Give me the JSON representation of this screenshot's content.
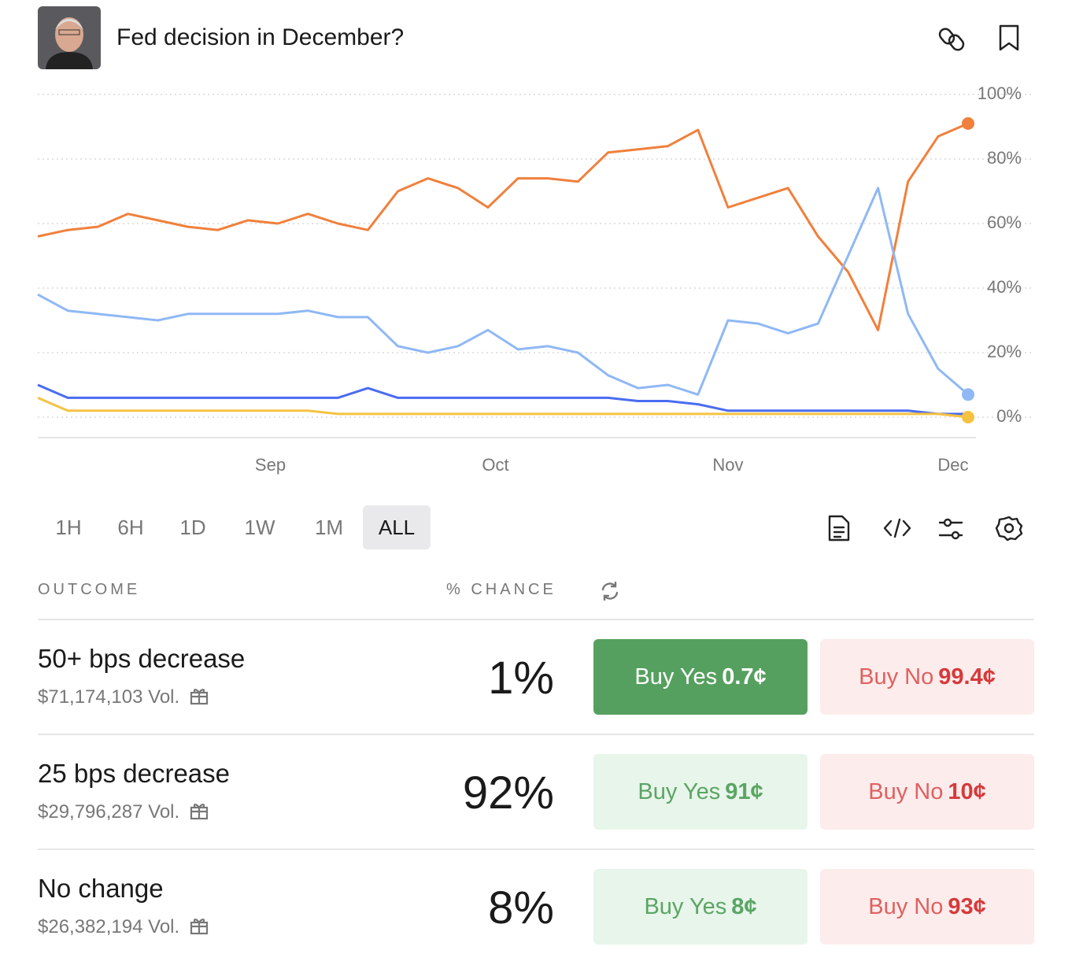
{
  "header": {
    "title": "Fed decision in December?"
  },
  "chart_data": {
    "type": "line",
    "x": [
      0,
      4,
      8,
      12,
      16,
      20,
      24,
      28,
      32,
      36,
      40,
      44,
      48,
      52,
      56,
      60,
      64,
      68,
      72,
      76,
      80,
      84,
      88,
      92,
      96,
      100,
      104,
      108,
      112,
      116,
      120,
      124
    ],
    "series": [
      {
        "color": "#f0803c",
        "end_dot": true,
        "values": [
          56,
          58,
          59,
          63,
          61,
          59,
          58,
          61,
          60,
          63,
          60,
          58,
          70,
          74,
          71,
          65,
          74,
          74,
          73,
          82,
          83,
          84,
          89,
          65,
          68,
          71,
          56,
          45,
          27,
          73,
          87,
          91
        ]
      },
      {
        "color": "#8fb8f5",
        "end_dot": true,
        "values": [
          38,
          33,
          32,
          31,
          30,
          32,
          32,
          32,
          32,
          33,
          31,
          31,
          22,
          20,
          22,
          27,
          21,
          22,
          20,
          13,
          9,
          10,
          7,
          30,
          29,
          26,
          29,
          50,
          71,
          32,
          15,
          7
        ]
      },
      {
        "color": "#4a6cf0",
        "end_dot": false,
        "values": [
          10,
          6,
          6,
          6,
          6,
          6,
          6,
          6,
          6,
          6,
          6,
          9,
          6,
          6,
          6,
          6,
          6,
          6,
          6,
          6,
          5,
          5,
          4,
          2,
          2,
          2,
          2,
          2,
          2,
          2,
          1,
          1
        ]
      },
      {
        "color": "#f5c242",
        "end_dot": true,
        "values": [
          6,
          2,
          2,
          2,
          2,
          2,
          2,
          2,
          2,
          2,
          1,
          1,
          1,
          1,
          1,
          1,
          1,
          1,
          1,
          1,
          1,
          1,
          1,
          1,
          1,
          1,
          1,
          1,
          1,
          1,
          1,
          0
        ]
      }
    ],
    "xlim": [
      0,
      124
    ],
    "xticks": [
      {
        "value": 31,
        "label": "Sep"
      },
      {
        "value": 61,
        "label": "Oct"
      },
      {
        "value": 92,
        "label": "Nov"
      },
      {
        "value": 122,
        "label": "Dec"
      }
    ],
    "ylim": [
      0,
      100
    ],
    "yticks": [
      {
        "value": 0,
        "label": "0%"
      },
      {
        "value": 20,
        "label": "20%"
      },
      {
        "value": 40,
        "label": "40%"
      },
      {
        "value": 60,
        "label": "60%"
      },
      {
        "value": 80,
        "label": "80%"
      },
      {
        "value": 100,
        "label": "100%"
      }
    ],
    "grid": true
  },
  "ranges": {
    "options": [
      "1H",
      "6H",
      "1D",
      "1W",
      "1M",
      "ALL"
    ],
    "selected": 5
  },
  "table": {
    "headers": [
      "OUTCOME",
      "% CHANCE"
    ],
    "rows": [
      {
        "name": "50+ bps decrease",
        "volume": "$71,174,103 Vol.",
        "chance": "1%",
        "yes_label": "Buy Yes",
        "yes_price": "0.7¢",
        "no_label": "Buy No",
        "no_price": "99.4¢",
        "highlight": true
      },
      {
        "name": "25 bps decrease",
        "volume": "$29,796,287 Vol.",
        "chance": "92%",
        "yes_label": "Buy Yes",
        "yes_price": "91¢",
        "no_label": "Buy No",
        "no_price": "10¢",
        "highlight": false
      },
      {
        "name": "No change",
        "volume": "$26,382,194 Vol.",
        "chance": "8%",
        "yes_label": "Buy Yes",
        "yes_price": "8¢",
        "no_label": "Buy No",
        "no_price": "93¢",
        "highlight": false
      }
    ]
  }
}
